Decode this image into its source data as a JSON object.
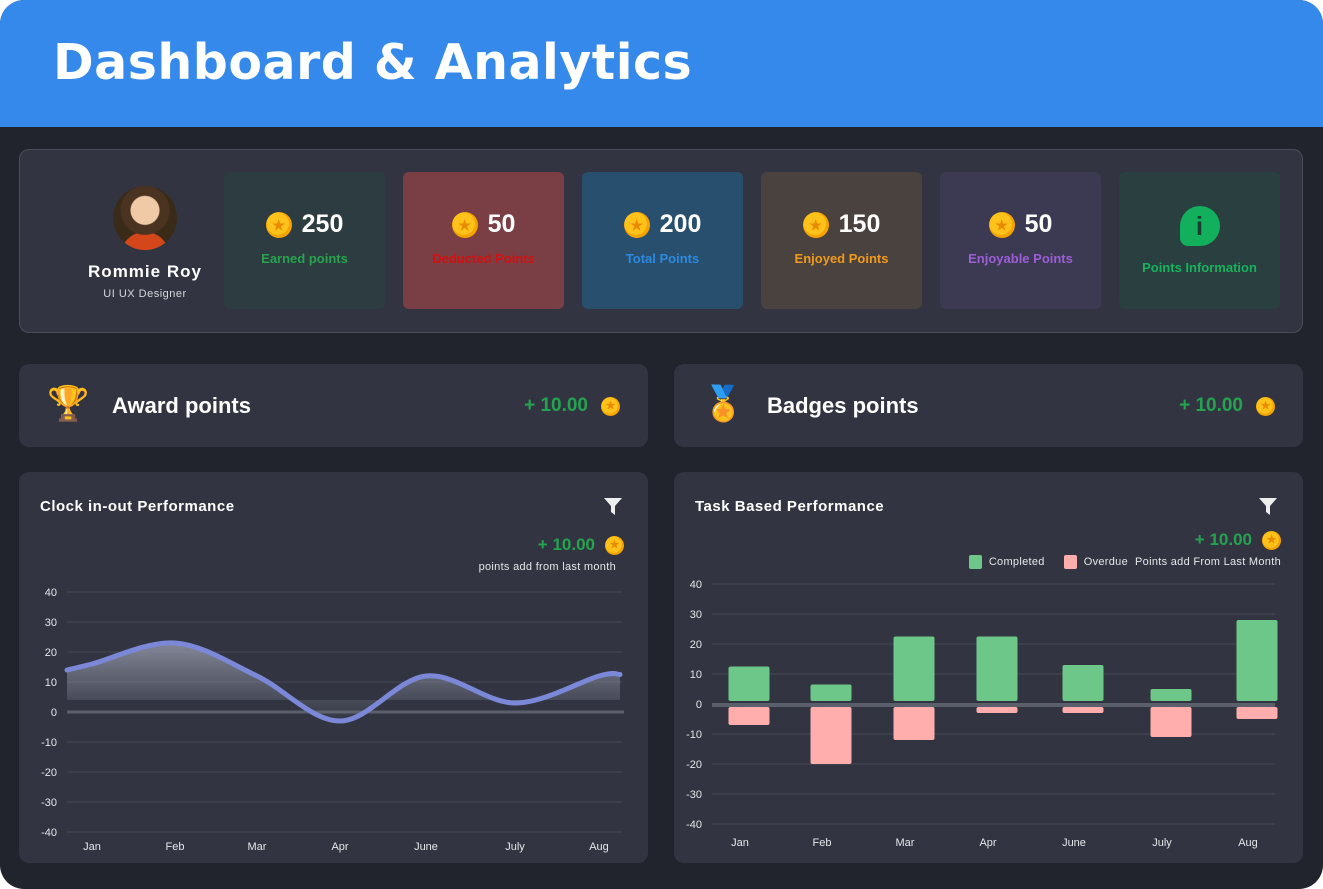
{
  "header": {
    "title": "Dashboard & Analytics"
  },
  "profile": {
    "name": "Rommie Roy",
    "role": "UI UX Designer"
  },
  "cards": [
    {
      "value": "250",
      "label": "Earned points",
      "label_color": "#27a34d",
      "bg": "#2c3c41",
      "icon": "coin-icon"
    },
    {
      "value": "50",
      "label": "Deducted Points",
      "label_color": "#d41010",
      "bg": "#7a3e45",
      "icon": "coin-icon"
    },
    {
      "value": "200",
      "label": "Total Points",
      "label_color": "#2b8ae0",
      "bg": "#284f6e",
      "icon": "coin-icon"
    },
    {
      "value": "150",
      "label": "Enjoyed Points",
      "label_color": "#f09a1c",
      "bg": "#4a423e",
      "icon": "coin-icon"
    },
    {
      "value": "50",
      "label": "Enjoyable Points",
      "label_color": "#9b5ed6",
      "bg": "#3c3a52",
      "icon": "coin-icon"
    },
    {
      "value": "",
      "label": "Points Information",
      "label_color": "#17b25c",
      "bg": "#293f40",
      "icon": "info-icon"
    }
  ],
  "award": {
    "title": "Award points",
    "points": "+ 10.00",
    "icon": "trophy-icon"
  },
  "badges": {
    "title": "Badges points",
    "points": "+ 10.00",
    "icon": "medal-icon"
  },
  "clock": {
    "title": "Clock in-out Performance",
    "points": "+ 10.00",
    "sub": "points add from last month"
  },
  "task": {
    "title": "Task Based Performance",
    "points": "+ 10.00",
    "legend_completed": "Completed",
    "legend_overdue": "Overdue",
    "sub": "Points add From Last Month"
  },
  "colors": {
    "accent": "#3589ea",
    "positive": "#24a34f",
    "completed": "#6cc788",
    "overdue": "#ffadad",
    "line": "#7b88d8"
  },
  "chart_data": [
    {
      "type": "area",
      "title": "Clock in-out Performance",
      "categories": [
        "Jan",
        "Feb",
        "Mar",
        "Apr",
        "June",
        "July",
        "Aug"
      ],
      "values": [
        16,
        23,
        12,
        -3,
        12,
        3,
        12
      ],
      "ylim": [
        -40,
        40
      ],
      "yticks": [
        40,
        30,
        20,
        10,
        0,
        -10,
        -20,
        -30,
        -40
      ],
      "grid": true
    },
    {
      "type": "bar",
      "title": "Task Based Performance",
      "categories": [
        "Jan",
        "Feb",
        "Mar",
        "Apr",
        "June",
        "July",
        "Aug"
      ],
      "series": [
        {
          "name": "Completed",
          "values": [
            12.5,
            6.5,
            22.5,
            22.5,
            13,
            5,
            28
          ]
        },
        {
          "name": "Overdue",
          "values": [
            -7,
            -20,
            -12,
            -3,
            -3,
            -11,
            -5
          ]
        }
      ],
      "ylim": [
        -40,
        40
      ],
      "yticks": [
        40,
        30,
        20,
        10,
        0,
        -10,
        -20,
        -30,
        -40
      ],
      "grid": true,
      "legend": "top-right"
    }
  ]
}
